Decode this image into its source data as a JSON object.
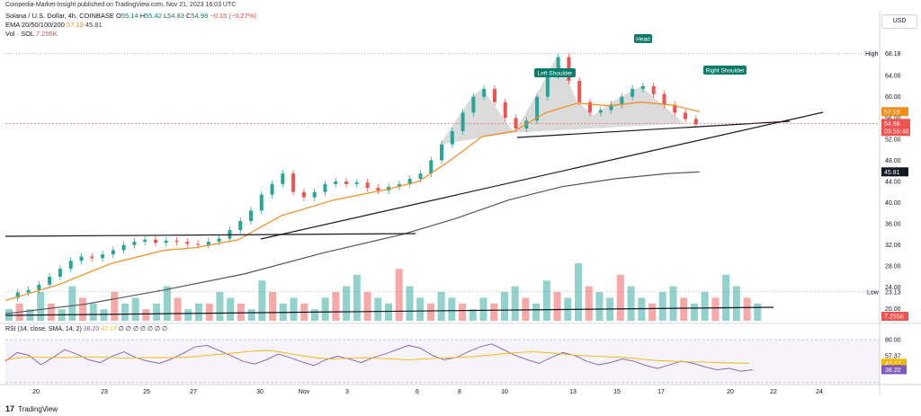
{
  "header": {
    "publisher": "Coinpedia-Market-Insight published on TradingView.com, Nov 21, 2023 16:03 UTC"
  },
  "legend": {
    "symbol": "Solana / U.S. Dollar, 4h, COINBASE",
    "open_label": "O",
    "open": "55.14",
    "high_label": "H",
    "high": "55.42",
    "low_label": "L",
    "low": "54.83",
    "close_label": "C",
    "close": "54.98",
    "change": "−0.15 (−0.27%)",
    "ema_label": "EMA 20/50/100/200",
    "ema_v1": "57.19",
    "ema_v2": "45.81",
    "vol_label": "Vol · SOL",
    "vol_value": "7.255K"
  },
  "currency_button": "USD",
  "rsi_legend": {
    "label": "RSI (14, close, SMA, 14, 2)",
    "v1": "38.20",
    "v2": "47.17",
    "rest": "∅ ∅ ∅ ∅ ∅ ∅ ∅"
  },
  "footer": {
    "logo": "17",
    "brand": "TradingView"
  },
  "colors": {
    "up": "#26a69a",
    "down": "#ef5350",
    "ema_fast": "#f28c1b",
    "ema_slow": "#555555",
    "rsi": "#7e57c2",
    "rsi_ma": "#f2b705",
    "pattern_fill": "#b0b0b0",
    "label_bg": "#0b7b6a"
  },
  "chart_data": {
    "type": "candlestick",
    "timeframe": "4h",
    "x_tick_labels": [
      "20",
      "23",
      "25",
      "27",
      "30",
      "Nov",
      "3",
      "6",
      "8",
      "10",
      "13",
      "15",
      "17",
      "20",
      "22",
      "24"
    ],
    "price_axis": {
      "ticks": [
        "64.00",
        "60.00",
        "56.00",
        "52.00",
        "48.00",
        "44.00",
        "40.00",
        "36.00",
        "32.00",
        "28.00",
        "24.00",
        "20.00"
      ],
      "high_label": "High",
      "high_value": "68.18",
      "low_label": "Low",
      "low_value": "23.13",
      "current_price": "54.98",
      "countdown": "03:56:48",
      "ema_fast_tag": "57.19",
      "ema_slow_tag": "45.81",
      "vol_tag": "7.255K",
      "ylim": [
        17.5,
        71.5
      ]
    },
    "rsi_axis": {
      "ticks": [
        "80.00",
        "57.37",
        "47.17",
        "41.62",
        "38.20"
      ],
      "ylim": [
        20,
        90
      ]
    },
    "annotations": [
      "Head",
      "Left Shoulder",
      "Right Shoulder"
    ],
    "price_path": [
      [
        0,
        22.0
      ],
      [
        4,
        23.0
      ],
      [
        8,
        23.5
      ],
      [
        12,
        24.5
      ],
      [
        16,
        26.0
      ],
      [
        20,
        27.5
      ],
      [
        24,
        29.0
      ],
      [
        28,
        29.8
      ],
      [
        32,
        29.5
      ],
      [
        36,
        30.2
      ],
      [
        40,
        31.0
      ],
      [
        44,
        32.0
      ],
      [
        48,
        32.6
      ],
      [
        52,
        33.0
      ],
      [
        56,
        32.4
      ],
      [
        60,
        32.8
      ],
      [
        64,
        32.6
      ],
      [
        68,
        32.2
      ],
      [
        72,
        32.0
      ],
      [
        76,
        32.6
      ],
      [
        80,
        33.2
      ],
      [
        84,
        34.8
      ],
      [
        88,
        36.5
      ],
      [
        92,
        38.5
      ],
      [
        96,
        41.5
      ],
      [
        100,
        43.5
      ],
      [
        104,
        45.5
      ],
      [
        108,
        42.0
      ],
      [
        112,
        41.0
      ],
      [
        116,
        42.0
      ],
      [
        120,
        43.5
      ],
      [
        124,
        44.0
      ],
      [
        128,
        43.5
      ],
      [
        132,
        43.8
      ],
      [
        136,
        42.8
      ],
      [
        140,
        42.3
      ],
      [
        144,
        43.0
      ],
      [
        148,
        43.5
      ],
      [
        152,
        44.5
      ],
      [
        156,
        45.5
      ],
      [
        160,
        48.0
      ],
      [
        164,
        51.0
      ],
      [
        168,
        53.5
      ],
      [
        172,
        57.0
      ],
      [
        176,
        60.0
      ],
      [
        180,
        61.5
      ],
      [
        184,
        59.0
      ],
      [
        188,
        56.0
      ],
      [
        192,
        54.0
      ],
      [
        196,
        55.5
      ],
      [
        200,
        60.0
      ],
      [
        204,
        64.0
      ],
      [
        208,
        67.5
      ],
      [
        212,
        63.0
      ],
      [
        216,
        59.0
      ],
      [
        220,
        57.0
      ],
      [
        224,
        57.5
      ],
      [
        228,
        58.5
      ],
      [
        232,
        60.0
      ],
      [
        236,
        61.5
      ],
      [
        240,
        62.0
      ],
      [
        244,
        60.5
      ],
      [
        248,
        58.5
      ],
      [
        252,
        57.0
      ],
      [
        256,
        55.8
      ],
      [
        260,
        54.8
      ]
    ],
    "ema_fast": [
      [
        0,
        21.5
      ],
      [
        20,
        24.5
      ],
      [
        40,
        28.5
      ],
      [
        60,
        31.0
      ],
      [
        72,
        31.5
      ],
      [
        88,
        33.0
      ],
      [
        104,
        37.5
      ],
      [
        124,
        40.5
      ],
      [
        144,
        42.5
      ],
      [
        156,
        44.0
      ],
      [
        168,
        48.0
      ],
      [
        180,
        52.5
      ],
      [
        192,
        53.5
      ],
      [
        204,
        57.0
      ],
      [
        216,
        58.8
      ],
      [
        228,
        58.3
      ],
      [
        240,
        59.0
      ],
      [
        252,
        58.4
      ],
      [
        262,
        57.2
      ]
    ],
    "ema_slow": [
      [
        0,
        19.0
      ],
      [
        30,
        20.8
      ],
      [
        60,
        23.5
      ],
      [
        90,
        26.5
      ],
      [
        120,
        30.5
      ],
      [
        150,
        34.0
      ],
      [
        170,
        37.0
      ],
      [
        190,
        40.5
      ],
      [
        210,
        43.0
      ],
      [
        230,
        44.5
      ],
      [
        250,
        45.5
      ],
      [
        262,
        45.8
      ]
    ],
    "volume": [
      2,
      3,
      2,
      5,
      3,
      2,
      6,
      4,
      3,
      2,
      5,
      3,
      4,
      2,
      3,
      6,
      4,
      2,
      3,
      3,
      5,
      4,
      3,
      2,
      7,
      5,
      3,
      4,
      3,
      2,
      4,
      5,
      6,
      8,
      5,
      4,
      3,
      9,
      6,
      4,
      3,
      5,
      4,
      3,
      2,
      4,
      3,
      5,
      6,
      4,
      3,
      7,
      5,
      4,
      10,
      6,
      5,
      4,
      8,
      6,
      4,
      3,
      5,
      6,
      4,
      3,
      5,
      4,
      8,
      6,
      4,
      3
    ],
    "rsi": [
      50,
      62,
      58,
      45,
      55,
      66,
      60,
      52,
      48,
      57,
      63,
      55,
      50,
      47,
      53,
      61,
      70,
      72,
      65,
      58,
      50,
      46,
      52,
      60,
      55,
      49,
      44,
      52,
      57,
      53,
      48,
      55,
      60,
      66,
      72,
      68,
      58,
      52,
      55,
      63,
      70,
      74,
      66,
      58,
      52,
      47,
      55,
      62,
      58,
      50,
      45,
      48,
      53,
      50,
      44,
      40,
      45,
      50,
      47,
      42,
      38,
      40,
      36,
      38
    ],
    "rsi_ma": [
      52,
      55,
      56,
      55,
      55,
      56,
      56,
      55,
      54,
      55,
      55,
      55,
      56,
      58,
      60,
      62,
      64,
      65,
      62,
      58,
      55,
      53,
      54,
      55,
      54,
      53,
      52,
      53,
      54,
      55,
      56,
      58,
      60,
      62,
      63,
      62,
      60,
      58,
      57,
      56,
      55,
      53,
      51,
      50,
      49,
      49,
      48,
      47.5,
      47.2
    ]
  }
}
